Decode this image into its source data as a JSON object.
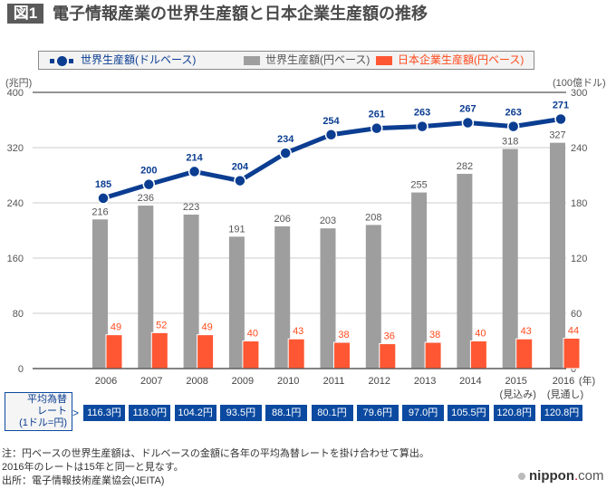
{
  "header": {
    "badge": "図1",
    "title": "電子情報産業の世界生産額と日本企業生産額の推移"
  },
  "legend": {
    "line_label": "世界生産額(ドルベース)",
    "gray_label": "世界生産額(円ベース)",
    "red_label": "日本企業生産額(円ベース)"
  },
  "colors": {
    "line": "#0b3d91",
    "gray_bar": "#9e9e9e",
    "red_bar": "#ff5733",
    "red_text": "#ff4a1c",
    "rate_box": "#0b4aa0"
  },
  "chart_data": {
    "type": "bar",
    "title": "電子情報産業の世界生産額と日本企業生産額の推移",
    "categories": [
      "2006",
      "2007",
      "2008",
      "2009",
      "2010",
      "2011",
      "2012",
      "2013",
      "2014",
      "2015",
      "2016"
    ],
    "category_sublabels": [
      "",
      "",
      "",
      "",
      "",
      "",
      "",
      "",
      "",
      "(見込み)",
      "(見通し)"
    ],
    "x_unit_label": "(年)",
    "left_axis": {
      "label": "(兆円)",
      "range": [
        0,
        400
      ],
      "ticks": [
        0,
        80,
        160,
        240,
        320,
        400
      ]
    },
    "right_axis": {
      "label": "(100億ドル)",
      "range": [
        0,
        300
      ],
      "ticks": [
        0,
        60,
        120,
        180,
        240,
        300
      ]
    },
    "series": [
      {
        "name": "世界生産額(円ベース)",
        "type": "bar",
        "axis": "left",
        "values": [
          216,
          236,
          223,
          191,
          206,
          203,
          208,
          255,
          282,
          318,
          327
        ]
      },
      {
        "name": "日本企業生産額(円ベース)",
        "type": "bar",
        "axis": "left",
        "values": [
          49,
          52,
          49,
          40,
          43,
          38,
          36,
          38,
          40,
          43,
          44
        ]
      },
      {
        "name": "世界生産額(ドルベース)",
        "type": "line",
        "axis": "right",
        "values": [
          185,
          200,
          214,
          204,
          234,
          254,
          261,
          263,
          267,
          263,
          271
        ]
      }
    ],
    "grid": true,
    "legend_position": "top"
  },
  "rates": {
    "label_lines": [
      "平均為替",
      "レート",
      "(1ドル=円)"
    ],
    "values": [
      "116.3円",
      "118.0円",
      "104.2円",
      "93.5円",
      "88.1円",
      "80.1円",
      "79.6円",
      "97.0円",
      "105.5円",
      "120.8円",
      "120.8円"
    ]
  },
  "notes": [
    "注：円ベースの世界生産額は、ドルベースの金額に各年の平均為替レートを掛け合わせて算出。",
    "2016年のレートは15年と同一と見なす。",
    "出所：電子情報技術産業協会(JEITA)"
  ],
  "logo": {
    "name": "nippon",
    "dot": ".",
    "tld": "com"
  }
}
